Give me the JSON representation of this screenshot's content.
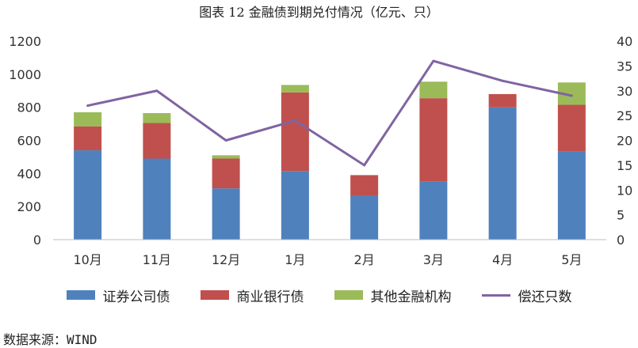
{
  "title": "图表 12 金融债到期兑付情况（亿元、只）",
  "source": "数据来源：WIND",
  "colors": {
    "securities": "#4F81BD",
    "commercial_bank": "#C0504D",
    "other": "#9BBB59",
    "count_line": "#8064A2"
  },
  "legend": [
    "证券公司债",
    "商业银行债",
    "其他金融机构",
    "偿还只数"
  ],
  "chart_data": {
    "type": "bar",
    "stacked": true,
    "categories": [
      "10月",
      "11月",
      "12月",
      "1月",
      "2月",
      "3月",
      "4月",
      "5月"
    ],
    "series": [
      {
        "name": "证券公司债",
        "axis": "left",
        "values": [
          540,
          490,
          310,
          415,
          265,
          350,
          800,
          535
        ]
      },
      {
        "name": "商业银行债",
        "axis": "left",
        "values": [
          145,
          215,
          180,
          475,
          125,
          505,
          80,
          280
        ]
      },
      {
        "name": "其他金融机构",
        "axis": "left",
        "values": [
          85,
          60,
          20,
          45,
          0,
          100,
          0,
          135
        ]
      },
      {
        "name": "偿还只数",
        "type": "line",
        "axis": "right",
        "values": [
          27,
          30,
          20,
          24,
          15,
          36,
          32,
          29
        ]
      }
    ],
    "y_left": {
      "min": 0,
      "max": 1200,
      "ticks": [
        "0",
        "200",
        "400",
        "600",
        "800",
        "1000",
        "1200"
      ]
    },
    "y_right": {
      "min": 0,
      "max": 40,
      "ticks": [
        "0",
        "5",
        "10",
        "15",
        "20",
        "25",
        "30",
        "35",
        "40"
      ]
    },
    "grid": false,
    "legend_position": "bottom"
  }
}
